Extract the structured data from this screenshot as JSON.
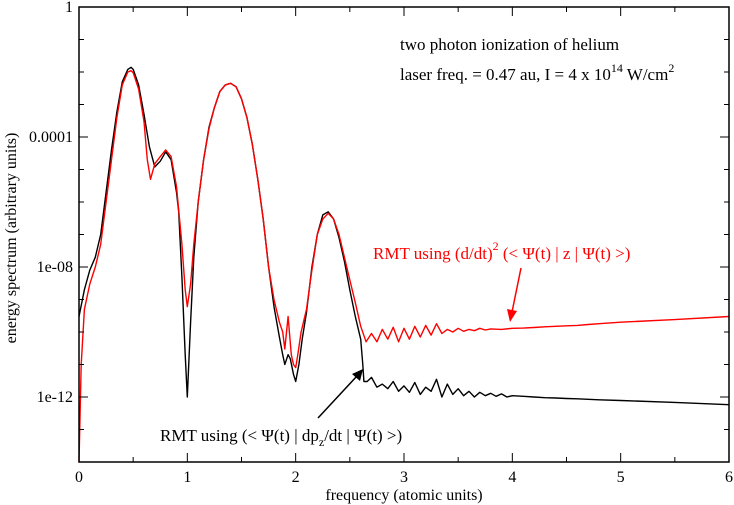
{
  "chart_data": {
    "type": "line",
    "title": "",
    "xlabel": "frequency (atomic units)",
    "ylabel": "energy spectrum (arbitrary units)",
    "xlim": [
      0,
      6
    ],
    "ylim": [
      1e-14,
      1
    ],
    "yscale": "log",
    "grid": false,
    "x_ticks": [
      "0",
      "1",
      "2",
      "3",
      "4",
      "5",
      "6"
    ],
    "y_ticks": [
      "1e-12",
      "1e-08",
      "0.0001",
      "1"
    ],
    "annotations": {
      "header_line1": "two photon ionization of helium",
      "header_line2_text": "laser freq. = 0.47 au, I = 4 x 10",
      "header_line2_exp": "14",
      "header_line2_unit": " W/cm",
      "header_line2_unit_exp": "2",
      "red_label_text": "RMT using (d/dt)",
      "red_label_exp": "2",
      "red_label_rest": " (< Ψ(t) | z |  Ψ(t) >)",
      "black_label_text": "RMT using (< Ψ(t) | dp",
      "black_label_sub": "z",
      "black_label_rest": "/dt |  Ψ(t) >)"
    },
    "series": [
      {
        "color": "#000000",
        "x": [
          0.0,
          0.05,
          0.1,
          0.15,
          0.2,
          0.25,
          0.3,
          0.35,
          0.4,
          0.45,
          0.48,
          0.5,
          0.55,
          0.6,
          0.65,
          0.7,
          0.75,
          0.8,
          0.85,
          0.9,
          0.92,
          0.95,
          0.98,
          1.0,
          1.03,
          1.06,
          1.1,
          1.15,
          1.2,
          1.25,
          1.3,
          1.35,
          1.4,
          1.45,
          1.5,
          1.55,
          1.6,
          1.65,
          1.7,
          1.75,
          1.8,
          1.85,
          1.88,
          1.9,
          1.93,
          1.95,
          1.98,
          2.0,
          2.03,
          2.06,
          2.1,
          2.15,
          2.2,
          2.25,
          2.3,
          2.35,
          2.4,
          2.45,
          2.5,
          2.55,
          2.6,
          2.62,
          2.63,
          2.66,
          2.7,
          2.75,
          2.8,
          2.85,
          2.9,
          2.95,
          3.0,
          3.05,
          3.1,
          3.15,
          3.2,
          3.25,
          3.3,
          3.35,
          3.4,
          3.45,
          3.5,
          3.55,
          3.6,
          3.65,
          3.7,
          3.75,
          3.8,
          3.85,
          3.9,
          3.95,
          4.0,
          4.1,
          4.2,
          4.3,
          4.4,
          4.5,
          4.6,
          4.7,
          4.8,
          5.0,
          5.5,
          6.0
        ],
        "y": [
          3e-10,
          2e-09,
          8e-09,
          2e-08,
          1e-07,
          2e-06,
          4e-05,
          0.0006,
          0.005,
          0.012,
          0.014,
          0.012,
          0.004,
          0.0005,
          5e-05,
          1.2e-05,
          1.8e-05,
          3.5e-05,
          2e-05,
          2e-06,
          5e-07,
          5e-09,
          2e-11,
          1e-12,
          2e-10,
          2e-08,
          1e-06,
          2e-05,
          0.0002,
          0.0008,
          0.0025,
          0.004,
          0.0045,
          0.0035,
          0.0015,
          0.0004,
          6e-05,
          5e-06,
          3e-07,
          1e-08,
          6e-10,
          7e-11,
          2e-11,
          1e-11,
          2e-11,
          1.5e-11,
          5e-12,
          3e-12,
          1e-11,
          6e-11,
          4e-10,
          1e-08,
          1e-07,
          4e-07,
          5e-07,
          3e-07,
          8e-08,
          1.5e-08,
          2e-09,
          3e-10,
          6e-11,
          1e-11,
          3e-12,
          3e-12,
          4e-12,
          2e-12,
          2.5e-12,
          1.8e-12,
          3e-12,
          1.5e-12,
          2.2e-12,
          1.4e-12,
          2.8e-12,
          1.2e-12,
          2e-12,
          1.5e-12,
          3.5e-12,
          1e-12,
          2.5e-12,
          1.2e-12,
          1.8e-12,
          1.1e-12,
          1.5e-12,
          1e-12,
          1.4e-12,
          1.1e-12,
          1.3e-12,
          1.05e-12,
          1.25e-12,
          1e-12,
          1.1e-12,
          1.05e-12,
          1e-12,
          9.5e-13,
          9.3e-13,
          9e-13,
          8.8e-13,
          8.5e-13,
          8.2e-13,
          7.8e-13,
          6.8e-13,
          5.8e-13
        ]
      },
      {
        "color": "#ff0000",
        "x": [
          0.0,
          0.02,
          0.05,
          0.1,
          0.15,
          0.2,
          0.25,
          0.3,
          0.35,
          0.4,
          0.45,
          0.48,
          0.5,
          0.55,
          0.6,
          0.63,
          0.66,
          0.7,
          0.75,
          0.8,
          0.85,
          0.9,
          0.95,
          0.98,
          1.0,
          1.03,
          1.06,
          1.1,
          1.15,
          1.2,
          1.25,
          1.3,
          1.35,
          1.4,
          1.45,
          1.5,
          1.55,
          1.6,
          1.65,
          1.7,
          1.75,
          1.8,
          1.85,
          1.88,
          1.9,
          1.93,
          1.96,
          1.98,
          2.0,
          2.02,
          2.05,
          2.1,
          2.15,
          2.2,
          2.25,
          2.3,
          2.35,
          2.4,
          2.45,
          2.5,
          2.55,
          2.6,
          2.65,
          2.7,
          2.75,
          2.8,
          2.85,
          2.9,
          2.95,
          3.0,
          3.05,
          3.1,
          3.15,
          3.2,
          3.25,
          3.3,
          3.35,
          3.4,
          3.45,
          3.5,
          3.55,
          3.6,
          3.65,
          3.7,
          3.75,
          3.8,
          3.9,
          4.0,
          4.1,
          4.2,
          4.3,
          4.4,
          4.5,
          4.6,
          4.7,
          4.8,
          5.0,
          5.5,
          6.0
        ],
        "y": [
          1e-14,
          1e-11,
          5e-10,
          3e-09,
          1e-08,
          5e-08,
          1e-06,
          2e-05,
          0.0004,
          0.004,
          0.01,
          0.011,
          0.0095,
          0.003,
          0.0003,
          2e-05,
          5e-06,
          1.5e-05,
          2.5e-05,
          4e-05,
          2.5e-05,
          3e-06,
          5e-08,
          2e-09,
          6e-10,
          3e-09,
          5e-08,
          1e-06,
          2e-05,
          0.00018,
          0.0008,
          0.0025,
          0.004,
          0.0045,
          0.0035,
          0.0015,
          0.0004,
          6e-05,
          5e-06,
          3e-07,
          1e-08,
          1e-09,
          2e-10,
          1e-10,
          3e-11,
          3e-10,
          2e-11,
          1e-11,
          8e-12,
          2e-11,
          1e-10,
          5e-10,
          8e-09,
          1e-07,
          3e-07,
          4.5e-07,
          3e-07,
          1e-07,
          2e-08,
          4e-09,
          8e-10,
          1.5e-10,
          5e-11,
          9e-11,
          5e-11,
          1.2e-10,
          6e-11,
          1.4e-10,
          5e-11,
          1.3e-10,
          6e-11,
          1.5e-10,
          7e-11,
          1.6e-10,
          8e-11,
          1.8e-10,
          9e-11,
          1.2e-10,
          1e-10,
          1.3e-10,
          1.05e-10,
          1.2e-10,
          1.1e-10,
          1.3e-10,
          1.15e-10,
          1.25e-10,
          1.2e-10,
          1.3e-10,
          1.32e-10,
          1.38e-10,
          1.45e-10,
          1.5e-10,
          1.55e-10,
          1.6e-10,
          1.7e-10,
          1.8e-10,
          2e-10,
          2.4e-10,
          3e-10
        ]
      }
    ]
  }
}
